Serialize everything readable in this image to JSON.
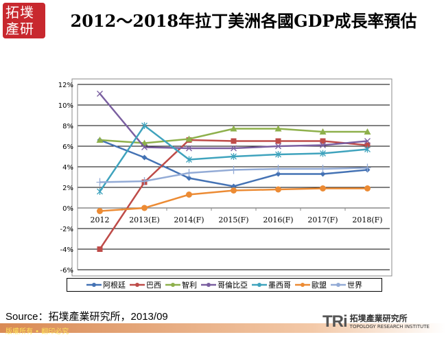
{
  "logo": {
    "text": "拓墣產研"
  },
  "source": "Source：拓墣產業研究所，2013/09",
  "footer": "版權所有 • 翻印必究",
  "tri_logo": {
    "mark": "TRi",
    "name": "拓墣產業研究所",
    "sub": "TOPOLOGY RESEARCH INSTITUTE"
  },
  "chart_data": {
    "type": "line",
    "title": "2012～2018年拉丁美洲各國GDP成長率預估",
    "categories": [
      "2012",
      "2013(E)",
      "2014(F)",
      "2015(F)",
      "2016(F)",
      "2017(F)",
      "2018(F)"
    ],
    "ylim": [
      -6,
      12
    ],
    "yticks": [
      "12%",
      "10%",
      "8%",
      "6%",
      "4%",
      "2%",
      "0%",
      "-2%",
      "-4%",
      "-6%"
    ],
    "grid": true,
    "legend": "bottom",
    "series": [
      {
        "name": "阿根廷",
        "color": "#4472b4",
        "marker": "diamond",
        "values": [
          6.6,
          4.9,
          2.9,
          2.1,
          3.3,
          3.3,
          3.7
        ]
      },
      {
        "name": "巴西",
        "color": "#be4b48",
        "marker": "square",
        "values": [
          -4.0,
          2.5,
          6.6,
          6.5,
          6.5,
          6.5,
          6.1
        ]
      },
      {
        "name": "智利",
        "color": "#8eb04b",
        "marker": "triangle",
        "values": [
          6.6,
          6.3,
          6.7,
          7.7,
          7.7,
          7.4,
          7.4
        ]
      },
      {
        "name": "哥倫比亞",
        "color": "#7a5fa0",
        "marker": "x",
        "values": [
          11.1,
          5.9,
          5.8,
          5.8,
          6.0,
          6.1,
          6.5
        ]
      },
      {
        "name": "墨西哥",
        "color": "#3fa3bd",
        "marker": "star",
        "values": [
          1.6,
          8.0,
          4.7,
          5.0,
          5.2,
          5.3,
          5.7
        ]
      },
      {
        "name": "歐盟",
        "color": "#ec8b34",
        "marker": "circle",
        "values": [
          -0.3,
          0.0,
          1.3,
          1.7,
          1.8,
          1.9,
          1.9
        ]
      },
      {
        "name": "世界",
        "color": "#93abd6",
        "marker": "plus",
        "values": [
          2.5,
          2.6,
          3.4,
          3.7,
          3.8,
          3.8,
          3.9
        ]
      }
    ]
  }
}
